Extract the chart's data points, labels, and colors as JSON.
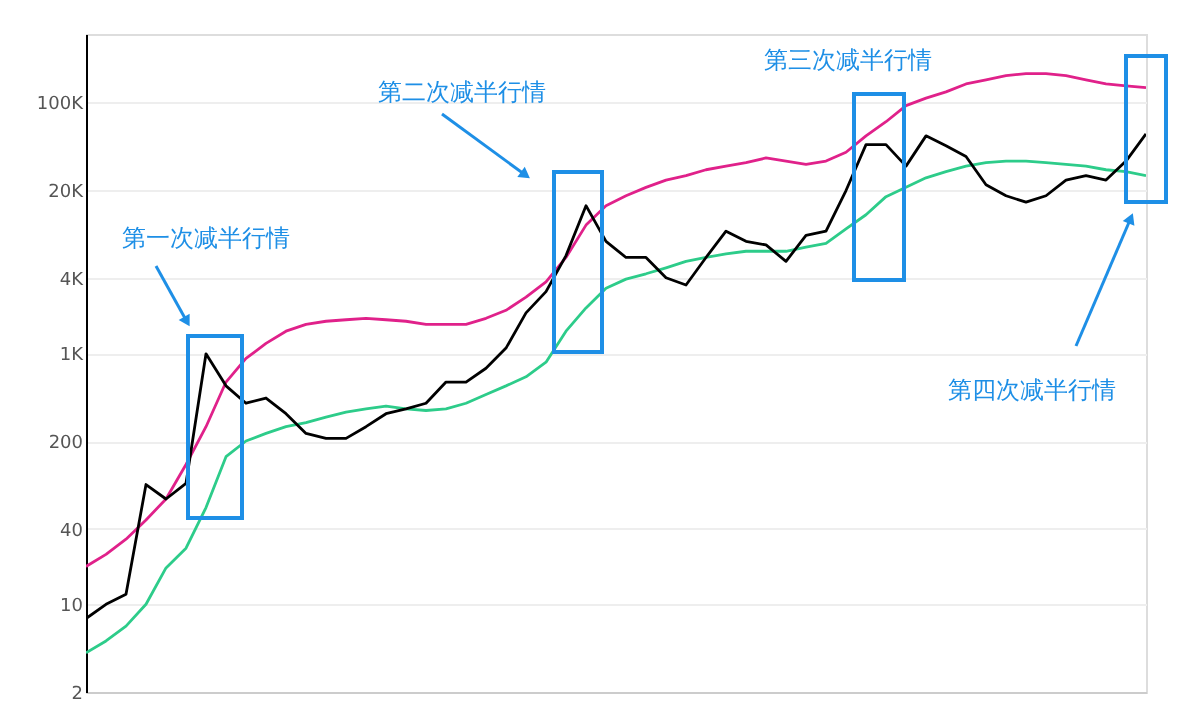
{
  "chart_data": {
    "type": "line",
    "categories": [
      null,
      null,
      null,
      null,
      null,
      null,
      null,
      null,
      null,
      null,
      null,
      null,
      null,
      null,
      null,
      null,
      null,
      null,
      null,
      null,
      null,
      null,
      null,
      null,
      null,
      null,
      null,
      null,
      null,
      null,
      null,
      null,
      null,
      null,
      null,
      null,
      null,
      null,
      null,
      null,
      null,
      null,
      null,
      null,
      null,
      null,
      null,
      null,
      null,
      null,
      null,
      null,
      null,
      null
    ],
    "series": [
      {
        "color": "#e0218a",
        "values": [
          20,
          25,
          33,
          47,
          69,
          130,
          260,
          590,
          910,
          1200,
          1500,
          1700,
          1800,
          1850,
          1900,
          1850,
          1800,
          1700,
          1700,
          1700,
          1900,
          2200,
          2800,
          3700,
          5800,
          10500,
          15000,
          18000,
          21000,
          24000,
          26000,
          29000,
          31000,
          33000,
          36000,
          34000,
          32000,
          34000,
          40000,
          54000,
          70000,
          94000,
          108000,
          121000,
          140000,
          151000,
          163000,
          169000,
          169000,
          163000,
          151000,
          140000,
          135000,
          131000
        ]
      },
      {
        "color": "#2dcc8a",
        "values": [
          4.1,
          5.1,
          6.7,
          10,
          19.5,
          28,
          59,
          150,
          200,
          230,
          260,
          280,
          310,
          340,
          360,
          380,
          360,
          350,
          360,
          400,
          470,
          550,
          650,
          850,
          1500,
          2300,
          3300,
          3900,
          4300,
          4800,
          5400,
          5800,
          6200,
          6500,
          6500,
          6500,
          7000,
          7500,
          9800,
          12700,
          17700,
          21000,
          25000,
          28000,
          31000,
          33000,
          34000,
          34000,
          33000,
          32000,
          31000,
          29000,
          28000,
          26000
        ]
      },
      {
        "color": "#000000",
        "values": [
          7.7,
          10,
          12,
          90,
          69,
          92,
          990,
          550,
          400,
          440,
          330,
          230,
          210,
          210,
          260,
          330,
          360,
          400,
          590,
          590,
          760,
          1100,
          2100,
          3100,
          6000,
          15000,
          7800,
          5800,
          5800,
          4000,
          3500,
          5800,
          9400,
          7800,
          7300,
          5400,
          8700,
          9400,
          19800,
          46000,
          46000,
          31000,
          54000,
          45000,
          37000,
          22000,
          18000,
          16000,
          18000,
          24000,
          26000,
          24000,
          34000,
          56000
        ]
      }
    ],
    "ylim": [
      2,
      350000
    ],
    "yticks": [
      {
        "value": 2,
        "label": "2"
      },
      {
        "value": 10,
        "label": "10"
      },
      {
        "value": 40,
        "label": "40"
      },
      {
        "value": 200,
        "label": "200"
      },
      {
        "value": 1000,
        "label": "1K"
      },
      {
        "value": 4000,
        "label": "4K"
      },
      {
        "value": 20000,
        "label": "20K"
      },
      {
        "value": 100000,
        "label": "100K"
      }
    ],
    "log": "y",
    "grid": "y",
    "legend": false,
    "tick_labels": "y",
    "annotations": [
      "第一次减半行情",
      "第二次减半行情",
      "第三次减半行情",
      "第四次减半行情"
    ]
  }
}
